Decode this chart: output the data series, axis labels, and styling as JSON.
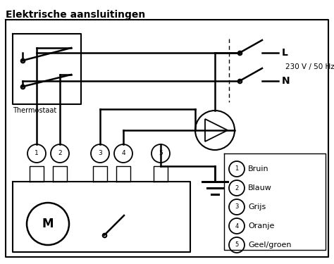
{
  "title": "Elektrische aansluitingen",
  "legend_items": [
    {
      "num": "1",
      "label": "Bruin"
    },
    {
      "num": "2",
      "label": "Blauw"
    },
    {
      "num": "3",
      "label": "Grijs"
    },
    {
      "num": "4",
      "label": "Oranje"
    },
    {
      "num": "5",
      "label": "Geel/groen"
    }
  ],
  "voltage_label": "230 V / 50 Hz",
  "thermostat_label": "Thermostaat",
  "L_label": "L",
  "N_label": "N",
  "bg_color": "#ffffff",
  "line_color": "#000000"
}
